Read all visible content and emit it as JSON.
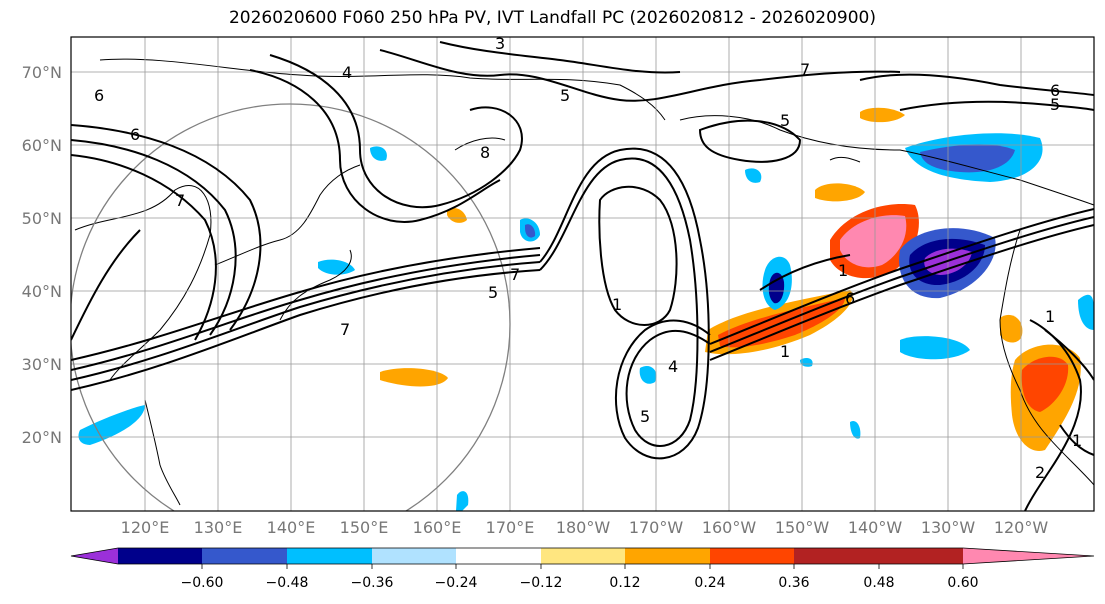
{
  "title": "2026020600 F060 250 hPa PV, IVT Landfall PC (2026020812 - 2026020900)",
  "lat_labels": [
    "70°N",
    "60°N",
    "50°N",
    "40°N",
    "30°N",
    "20°N"
  ],
  "lon_labels": [
    "120°E",
    "130°E",
    "140°E",
    "150°E",
    "160°E",
    "170°E",
    "180°W",
    "170°W",
    "160°W",
    "150°W",
    "140°W",
    "130°W",
    "120°W"
  ],
  "colorbar": {
    "tick_labels": [
      "−0.60",
      "−0.48",
      "−0.36",
      "−0.24",
      "−0.12",
      "0.12",
      "0.24",
      "0.36",
      "0.48",
      "0.60"
    ],
    "colors": [
      "#9b30d9",
      "#00008b",
      "#3558cc",
      "#00bfff",
      "#b0e2ff",
      "#ffffff",
      "#ffe680",
      "#ffa500",
      "#ff4500",
      "#b22222",
      "#ff88b0"
    ]
  },
  "contour_labels": [
    "3",
    "4",
    "6",
    "6",
    "5",
    "8",
    "7",
    "6",
    "5",
    "7",
    "7",
    "5",
    "1",
    "4",
    "5",
    "1",
    "1",
    "6",
    "7",
    "1",
    "2",
    "1",
    "5"
  ],
  "colors": {
    "contour": "#000000",
    "grid": "#999999",
    "coast": "#000000",
    "circle": "#808080"
  }
}
